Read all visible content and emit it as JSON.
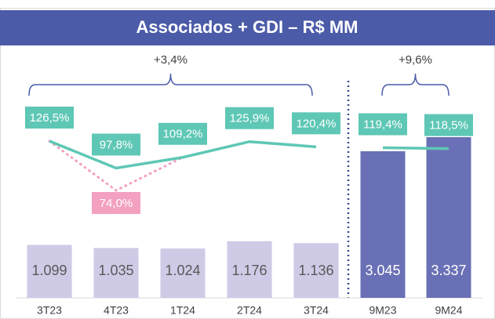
{
  "chart_data": {
    "type": "bar-line",
    "title": "Associados + GDI – R$ MM",
    "categories": [
      "3T23",
      "4T23",
      "1T24",
      "2T24",
      "3T24",
      "9M23",
      "9M24"
    ],
    "bars": {
      "values": [
        1099,
        1035,
        1024,
        1176,
        1136,
        3045,
        3337
      ],
      "value_labels": [
        "1.099",
        "1.035",
        "1.024",
        "1.176",
        "1.136",
        "3.045",
        "3.337"
      ],
      "colors": [
        "#cfcae6",
        "#cfcae6",
        "#cfcae6",
        "#cfcae6",
        "#cfcae6",
        "#6a70b6",
        "#6a70b6"
      ]
    },
    "series": [
      {
        "color": "#5ec7b5",
        "values": [
          126.5,
          97.8,
          109.2,
          125.9,
          120.4,
          null,
          null
        ],
        "value_labels": [
          "126,5%",
          "97,8%",
          "109,2%",
          "125,9%",
          "120,4%",
          null,
          null
        ]
      },
      {
        "color": "#5ec7b5",
        "values": [
          null,
          null,
          null,
          null,
          null,
          119.4,
          118.5
        ],
        "value_labels": [
          null,
          null,
          null,
          null,
          null,
          "119,4%",
          "118,5%"
        ]
      },
      {
        "color": "#f3a0c1",
        "values": [
          null,
          74.0,
          null,
          null,
          null,
          null,
          null
        ],
        "value_labels": [
          null,
          "74,0%",
          null,
          null,
          null,
          null,
          null
        ]
      }
    ],
    "annotations": [
      "+3,4%",
      "+9,6%"
    ]
  }
}
